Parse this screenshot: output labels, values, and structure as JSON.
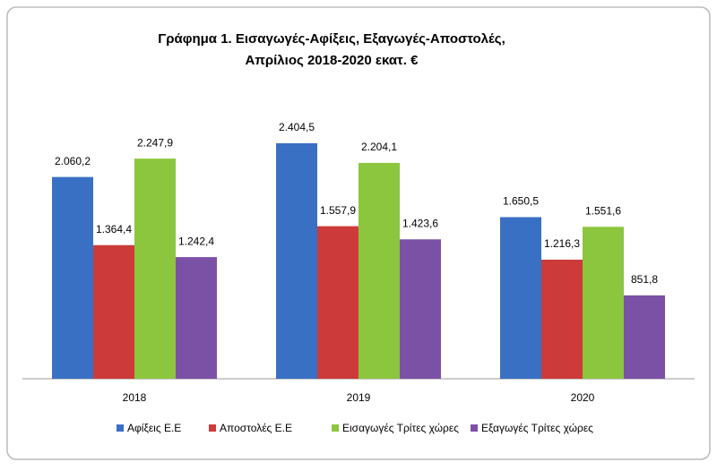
{
  "chart_data": {
    "type": "bar",
    "title": [
      "Γράφημα 1. Εισαγωγές-Αφίξεις, Εξαγωγές-Αποστολές,",
      "Απρίλιος 2018-2020 εκατ. €"
    ],
    "categories": [
      "2018",
      "2019",
      "2020"
    ],
    "series": [
      {
        "name": "Αφίξεις Ε.Ε",
        "color": "#3a70c4",
        "values": [
          2060.2,
          2404.5,
          1650.5
        ],
        "value_labels": [
          "2.060,2",
          "2.404,5",
          "1.650,5"
        ]
      },
      {
        "name": "Αποστολές  Ε.Ε",
        "color": "#cc3b3a",
        "values": [
          1364.4,
          1557.9,
          1216.3
        ],
        "value_labels": [
          "1.364,4",
          "1.557,9",
          "1.216,3"
        ]
      },
      {
        "name": "Εισαγωγές Τρίτες χώρες",
        "color": "#8cc63e",
        "values": [
          2247.9,
          2204.1,
          1551.6
        ],
        "value_labels": [
          "2.247,9",
          "2.204,1",
          "1.551,6"
        ]
      },
      {
        "name": "Εξαγωγές Τρίτες χώρες",
        "color": "#7b51a6",
        "values": [
          1242.4,
          1423.6,
          851.8
        ],
        "value_labels": [
          "1.242,4",
          "1.423,6",
          "851,8"
        ]
      }
    ]
  }
}
